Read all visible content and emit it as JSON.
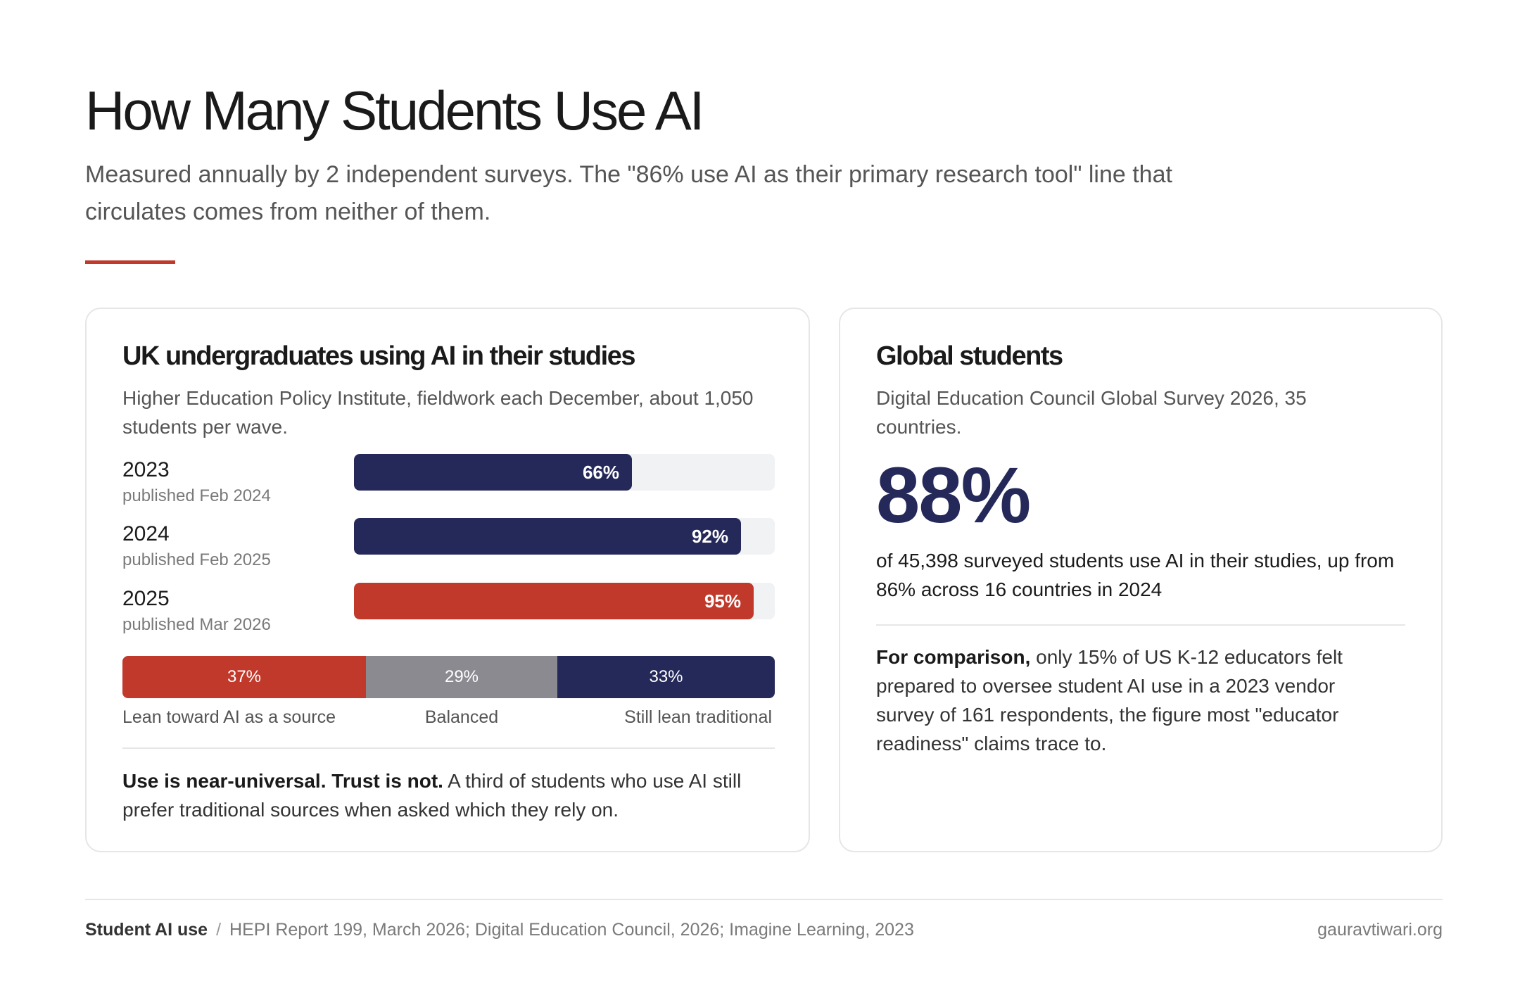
{
  "header": {
    "title": "How Many Students Use AI",
    "subtitle": "Measured annually by 2 independent surveys. The \"86% use AI as their primary research tool\" line that circulates comes from neither of them.",
    "accent_color": "#c0392b"
  },
  "uk_card": {
    "title": "UK undergraduates using AI in their studies",
    "description": "Higher Education Policy Institute, fieldwork each December, about 1,050 students per wave.",
    "note_bold": "Use is near-universal. Trust is not.",
    "note_rest": " A third of students who use AI still prefer traditional sources when asked which they rely on."
  },
  "global_card": {
    "title": "Global students",
    "description": "Digital Education Council Global Survey 2026, 35 countries.",
    "big_number": "88%",
    "big_number_text": "of 45,398 surveyed students use AI in their studies, up from 86% across 16 countries in 2024",
    "comparison_bold": "For comparison,",
    "comparison_rest": " only 15% of US K-12 educators felt prepared to oversee student AI use in a 2023 vendor survey of 161 respondents, the figure most \"educator readiness\" claims trace to."
  },
  "chart_data": [
    {
      "type": "bar",
      "orientation": "horizontal",
      "categories": [
        "2023",
        "2024",
        "2025"
      ],
      "sublabels": [
        "published Feb 2024",
        "published Feb 2025",
        "published Mar 2026"
      ],
      "values": [
        66,
        92,
        95
      ],
      "value_labels": [
        "66%",
        "92%",
        "95%"
      ],
      "xlim": [
        0,
        100
      ],
      "colors": [
        "#25295a",
        "#25295a",
        "#c0392b"
      ]
    },
    {
      "type": "bar",
      "orientation": "stacked-horizontal",
      "categories": [
        "Lean toward AI as a source",
        "Balanced",
        "Still lean traditional"
      ],
      "values": [
        37,
        29,
        33
      ],
      "value_labels": [
        "37%",
        "29%",
        "33%"
      ],
      "colors": [
        "#c0392b",
        "#8a8a90",
        "#25295a"
      ]
    }
  ],
  "footer": {
    "label": "Student AI use",
    "separator": "/",
    "sources": "HEPI Report 199, March 2026; Digital Education Council, 2026; Imagine Learning, 2023",
    "site": "gauravtiwari.org"
  }
}
